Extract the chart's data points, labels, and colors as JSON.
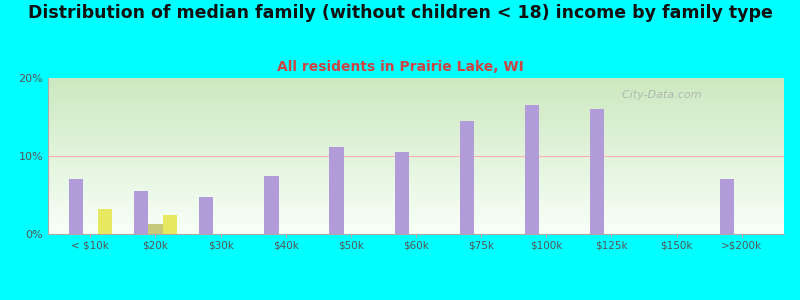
{
  "title": "Distribution of median family (without children < 18) income by family type",
  "subtitle": "All residents in Prairie Lake, WI",
  "categories": [
    "< $10k",
    "$20k",
    "$30k",
    "$40k",
    "$50k",
    "$60k",
    "$75k",
    "$100k",
    "$125k",
    "$150k",
    ">$200k"
  ],
  "married_couple": [
    7.0,
    5.5,
    4.7,
    7.5,
    11.2,
    10.5,
    14.5,
    16.5,
    16.0,
    0.0,
    7.0
  ],
  "male_no_wife": [
    0.0,
    1.3,
    0.0,
    0.0,
    0.0,
    0.0,
    0.0,
    0.0,
    0.0,
    0.0,
    0.0
  ],
  "female_no_husband": [
    3.2,
    2.4,
    0.0,
    0.0,
    0.0,
    0.0,
    0.0,
    0.0,
    0.0,
    0.0,
    0.0
  ],
  "married_color": "#b19cd9",
  "male_color": "#c8c87a",
  "female_color": "#e8e860",
  "bg_color": "#00ffff",
  "title_fontsize": 12.5,
  "subtitle_fontsize": 10,
  "subtitle_color": "#cc4444",
  "watermark": "  City-Data.com",
  "ylim": [
    0,
    20
  ],
  "yticks": [
    0,
    10,
    20
  ],
  "bar_width": 0.22
}
